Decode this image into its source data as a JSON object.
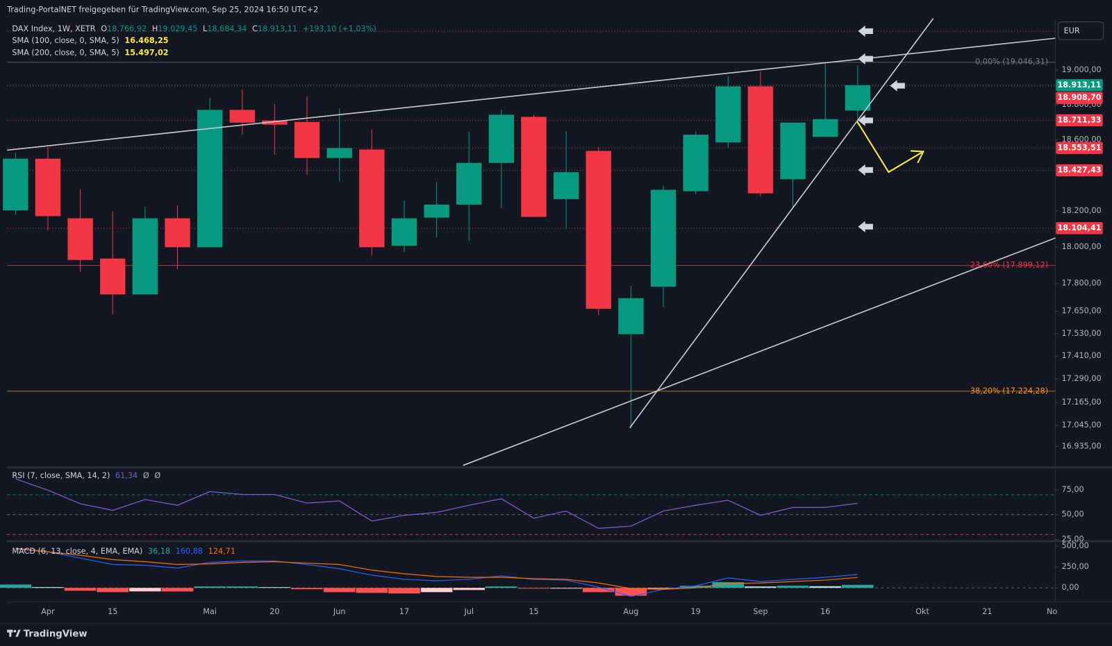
{
  "header": {
    "share_text": "Trading-PortalNET freigegeben für TradingView.com, Sep 25, 2024 16:50 UTC+2"
  },
  "legend": {
    "symbol": "DAX Index, 1W, XETR",
    "o_label": "O",
    "o": "18.766,92",
    "h_label": "H",
    "h": "19.029,45",
    "l_label": "L",
    "l": "18.684,34",
    "c_label": "C",
    "c": "18.913,11",
    "change": "+193,10 (+1,03%)"
  },
  "indicators": [
    {
      "name": "SMA (100, close, 0, SMA, 5)",
      "value": "16.468,25"
    },
    {
      "name": "SMA (200, close, 0, SMA, 5)",
      "value": "15.497,02"
    }
  ],
  "currency": "EUR",
  "footer": {
    "brand": "TradingView"
  },
  "chart_data": [
    {
      "type": "candlestick",
      "log_scale": true,
      "grid": false,
      "up_color": "#089981",
      "down_color": "#f23645",
      "open": [
        18203,
        18493,
        18159,
        17937,
        17741,
        18159,
        17999,
        18771,
        18710,
        18702,
        18497,
        18545,
        18007,
        18163,
        18235,
        18469,
        18731,
        18266,
        18537,
        17527,
        17783,
        18310,
        18585,
        18906,
        18377,
        18617,
        18766.92
      ],
      "high": [
        18529,
        18557,
        18322,
        18199,
        18223,
        18231,
        18840,
        18889,
        18804,
        18848,
        18779,
        18658,
        18258,
        18361,
        18646,
        18771,
        18743,
        18650,
        18561,
        17786,
        18341,
        18646,
        18967,
        18992,
        18698,
        19045,
        19029.45
      ],
      "low": [
        18179,
        18093,
        17864,
        17634,
        17741,
        17879,
        17999,
        18629,
        18517,
        18401,
        18365,
        17953,
        17972,
        18054,
        18034,
        18215,
        18167,
        18100,
        17630,
        17030,
        17672,
        18294,
        18553,
        18282,
        18215,
        18617,
        18684.34
      ],
      "close": [
        18493,
        18171,
        17929,
        17741,
        18159,
        17999,
        18771,
        18698,
        18686,
        18497,
        18553,
        17999,
        18159,
        18235,
        18469,
        18743,
        18167,
        18417,
        17664,
        17721,
        18318,
        18629,
        18906,
        18298,
        18698,
        18718,
        18913.11
      ],
      "xlim": [
        -0.26,
        32.1
      ],
      "xticks": [
        {
          "value": 1,
          "label": "Apr"
        },
        {
          "value": 3,
          "label": "15"
        },
        {
          "value": 6,
          "label": "Mai"
        },
        {
          "value": 8,
          "label": "20"
        },
        {
          "value": 10,
          "label": "Jun"
        },
        {
          "value": 12,
          "label": "17"
        },
        {
          "value": 14,
          "label": "Jul"
        },
        {
          "value": 16,
          "label": "15"
        },
        {
          "value": 19,
          "label": "Aug"
        },
        {
          "value": 21,
          "label": "19"
        },
        {
          "value": 23,
          "label": "Sep"
        },
        {
          "value": 25,
          "label": "16"
        },
        {
          "value": 28,
          "label": "Okt"
        },
        {
          "value": 30,
          "label": "21"
        },
        {
          "value": 32,
          "label": "No"
        }
      ],
      "ylim": [
        16838,
        19299
      ],
      "yticks": [
        {
          "value": 19000,
          "label": "19.000,00"
        },
        {
          "value": 18800,
          "label": "18.800,00"
        },
        {
          "value": 18600,
          "label": "18.600,00"
        },
        {
          "value": 18200,
          "label": "18.200,00"
        },
        {
          "value": 18000,
          "label": "18.000,00"
        },
        {
          "value": 17800,
          "label": "17.800,00"
        },
        {
          "value": 17650,
          "label": "17.650,00"
        },
        {
          "value": 17530,
          "label": "17.530,00"
        },
        {
          "value": 17410,
          "label": "17.410,00"
        },
        {
          "value": 17290,
          "label": "17.290,00"
        },
        {
          "value": 17165,
          "label": "17.165,00"
        },
        {
          "value": 17045,
          "label": "17.045,00"
        },
        {
          "value": 16935,
          "label": "16.935,00"
        }
      ],
      "price_tags": [
        {
          "value": 18913.11,
          "label": "18.913,11",
          "color": "#089981"
        },
        {
          "value": 18908.7,
          "label": "18.908,70",
          "color": "#f23645"
        },
        {
          "value": 18711.33,
          "label": "18.711,33",
          "color": "#f23645"
        },
        {
          "value": 18553.51,
          "label": "18.553,51",
          "color": "#f23645"
        },
        {
          "value": 18427.43,
          "label": "18.427,43",
          "color": "#f23645"
        },
        {
          "value": 18104.41,
          "label": "18.104,41",
          "color": "#f23645"
        }
      ],
      "levels": [
        19228
      ],
      "fib_levels": [
        {
          "value": 19046.31,
          "label": "0,00% (19.046,31)",
          "color": "#787b86"
        },
        {
          "value": 17899.12,
          "label": "23,60% (17.899,12)",
          "color": "#f23645"
        },
        {
          "value": 17224.28,
          "label": "38,20% (17.224,28)",
          "color": "#ff9800"
        }
      ]
    },
    {
      "type": "rsi",
      "title": "RSI (7, close, SMA, 14, 2)",
      "value_label": "61,34",
      "extra_labels": [
        "Ø",
        "Ø"
      ],
      "color": "#7e57c2",
      "values": [
        86,
        74.6,
        60.9,
        54.3,
        65.2,
        59.4,
        73.2,
        70.3,
        70.3,
        61.6,
        63.8,
        43.5,
        49.3,
        52.2,
        59.4,
        65.9,
        46.4,
        53.6,
        36.2,
        38.4,
        53.6,
        59.4,
        64.5,
        49.3,
        57.2,
        57.2,
        61.34
      ],
      "ylim": [
        24,
        96
      ],
      "yticks": [
        {
          "value": 75,
          "label": "75,00"
        },
        {
          "value": 50,
          "label": "50,00"
        },
        {
          "value": 25,
          "label": "25,00"
        }
      ],
      "bands": [
        {
          "value": 70,
          "color": "#089981"
        },
        {
          "value": 50,
          "color": "#787b86"
        },
        {
          "value": 30,
          "color": "#f23645"
        }
      ]
    },
    {
      "type": "macd",
      "title": "MACD (6, 13, close, 4, EMA, EMA)",
      "histogram": {
        "value_label": "36,18",
        "colors": [
          "#26a69a",
          "#b2dfdb",
          "#ff5252",
          "#ffcdd2"
        ],
        "values": [
          40,
          10,
          -34,
          -51,
          -42,
          -43,
          17,
          17,
          9,
          -16,
          -51,
          -60,
          -67,
          -51,
          -25,
          17,
          -8,
          -5,
          -51,
          -94,
          -1,
          25,
          68,
          17,
          26,
          20,
          36.18
        ]
      },
      "macd": {
        "value_label": "160,88",
        "color": "#2962ff",
        "values": [
          466,
          432,
          356,
          280,
          271,
          237,
          305,
          322,
          322,
          280,
          229,
          152,
          102,
          85,
          102,
          144,
          102,
          93,
          8,
          -102,
          -17,
          25,
          119,
          76,
          102,
          127,
          160.88
        ]
      },
      "signal": {
        "value_label": "124,71",
        "color": "#ff6d00",
        "values": [
          474,
          432,
          390,
          339,
          313,
          280,
          288,
          305,
          313,
          296,
          280,
          212,
          169,
          136,
          127,
          127,
          110,
          102,
          59,
          -8,
          -17,
          0,
          51,
          59,
          76,
          93,
          124.71
        ]
      },
      "ylim": [
        -153,
        542
      ],
      "yticks": [
        {
          "value": 500,
          "label": "500,00"
        },
        {
          "value": 250,
          "label": "250,00"
        },
        {
          "value": 0,
          "label": "0,00"
        }
      ]
    }
  ]
}
